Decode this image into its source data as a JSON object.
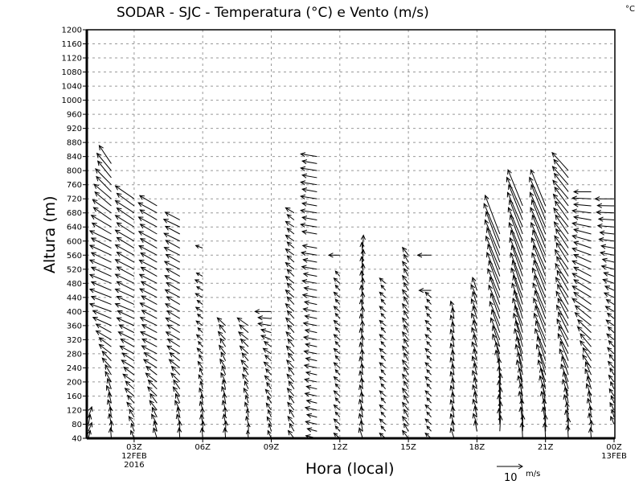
{
  "chart_data": {
    "type": "vector",
    "title": "SODAR - SJC - Temperatura (°C) e Vento (m/s)",
    "corner_unit": "°C",
    "xlabel": "Hora (local)",
    "ylabel": "Altura (m)",
    "ylim": [
      40,
      1200
    ],
    "ytick_step": 40,
    "xlim_hours": [
      0.7,
      24.05
    ],
    "xticks": [
      {
        "hour": 3,
        "label": "03Z",
        "sub": [
          "12FEB",
          "2016"
        ]
      },
      {
        "hour": 6,
        "label": "06Z",
        "sub": []
      },
      {
        "hour": 9,
        "label": "09Z",
        "sub": []
      },
      {
        "hour": 12,
        "label": "12Z",
        "sub": []
      },
      {
        "hour": 15,
        "label": "15Z",
        "sub": []
      },
      {
        "hour": 18,
        "label": "18Z",
        "sub": []
      },
      {
        "hour": 21,
        "label": "21Z",
        "sub": []
      },
      {
        "hour": 24,
        "label": "00Z",
        "sub": [
          "13FEB"
        ]
      }
    ],
    "grid": true,
    "reference_vector": {
      "value": 10,
      "label": "10",
      "unit": "m/s"
    },
    "level_step_m": 20,
    "profiles": [
      {
        "hour": 1,
        "range": [
          40,
          100
        ],
        "wind": [
          [
            40,
            1,
            3
          ],
          [
            100,
            1,
            4
          ]
        ],
        "skip": []
      },
      {
        "hour": 2,
        "range": [
          40,
          820
        ],
        "wind": [
          [
            40,
            0,
            4
          ],
          [
            200,
            -2,
            4
          ],
          [
            400,
            -8,
            3
          ],
          [
            600,
            -8,
            4
          ],
          [
            820,
            -5,
            7
          ]
        ],
        "skip": []
      },
      {
        "hour": 3,
        "range": [
          40,
          720
        ],
        "wind": [
          [
            40,
            -1,
            3
          ],
          [
            200,
            -4,
            3
          ],
          [
            400,
            -7,
            3
          ],
          [
            720,
            -7,
            5
          ]
        ],
        "skip": []
      },
      {
        "hour": 4,
        "range": [
          40,
          700
        ],
        "wind": [
          [
            40,
            -1,
            4
          ],
          [
            300,
            -6,
            3
          ],
          [
            700,
            -7,
            4
          ]
        ],
        "skip": []
      },
      {
        "hour": 5,
        "range": [
          40,
          660
        ],
        "wind": [
          [
            40,
            0,
            4
          ],
          [
            300,
            -5,
            3
          ],
          [
            660,
            -6,
            3
          ]
        ],
        "skip": []
      },
      {
        "hour": 6,
        "range": [
          40,
          580
        ],
        "wind": [
          [
            40,
            0,
            4
          ],
          [
            300,
            -2,
            2
          ],
          [
            580,
            -3,
            1
          ]
        ],
        "skip": [
          520,
          540,
          560
        ]
      },
      {
        "hour": 7,
        "range": [
          40,
          370
        ],
        "wind": [
          [
            40,
            0,
            4
          ],
          [
            370,
            -3,
            3
          ]
        ],
        "skip": []
      },
      {
        "hour": 8,
        "range": [
          40,
          360
        ],
        "wind": [
          [
            40,
            0,
            3
          ],
          [
            360,
            -4,
            3
          ]
        ],
        "skip": []
      },
      {
        "hour": 9,
        "range": [
          40,
          400
        ],
        "wind": [
          [
            40,
            -1,
            3
          ],
          [
            300,
            -3,
            2
          ],
          [
            400,
            -6,
            0
          ]
        ],
        "skip": []
      },
      {
        "hour": 10,
        "range": [
          40,
          680
        ],
        "wind": [
          [
            40,
            -2,
            3
          ],
          [
            400,
            -3,
            3
          ],
          [
            680,
            -3,
            2
          ]
        ],
        "skip": []
      },
      {
        "hour": 11,
        "range": [
          40,
          840
        ],
        "wind": [
          [
            40,
            -4,
            1
          ],
          [
            400,
            -5,
            1
          ],
          [
            620,
            -6,
            1
          ],
          [
            840,
            -6,
            1
          ]
        ],
        "skip": [
          600
        ]
      },
      {
        "hour": 12,
        "range": [
          40,
          560
        ],
        "wind": [
          [
            40,
            -2,
            2
          ],
          [
            500,
            -2,
            2
          ],
          [
            560,
            -4,
            0
          ]
        ],
        "skip": [
          520,
          540
        ]
      },
      {
        "hour": 13,
        "range": [
          40,
          580
        ],
        "wind": [
          [
            40,
            -1,
            4
          ],
          [
            580,
            0,
            5
          ]
        ],
        "skip": []
      },
      {
        "hour": 14,
        "range": [
          40,
          480
        ],
        "wind": [
          [
            40,
            -2,
            2
          ],
          [
            480,
            -2,
            2
          ]
        ],
        "skip": []
      },
      {
        "hour": 15,
        "range": [
          40,
          560
        ],
        "wind": [
          [
            40,
            -2,
            3
          ],
          [
            560,
            -2,
            3
          ]
        ],
        "skip": []
      },
      {
        "hour": 16,
        "range": [
          40,
          560
        ],
        "wind": [
          [
            40,
            -2,
            2
          ],
          [
            440,
            -2,
            2
          ],
          [
            460,
            -5,
            0
          ],
          [
            560,
            -5,
            0
          ]
        ],
        "skip": [
          480,
          500,
          520,
          540
        ]
      },
      {
        "hour": 17,
        "range": [
          40,
          400
        ],
        "wind": [
          [
            40,
            -1,
            4
          ],
          [
            400,
            -1,
            4
          ]
        ],
        "skip": []
      },
      {
        "hour": 18,
        "range": [
          60,
          460
        ],
        "wind": [
          [
            40,
            -1,
            4
          ],
          [
            460,
            -2,
            5
          ]
        ],
        "skip": []
      },
      {
        "hour": 19,
        "range": [
          60,
          620
        ],
        "wind": [
          [
            40,
            0,
            6
          ],
          [
            200,
            0,
            6
          ],
          [
            300,
            -3,
            8
          ],
          [
            620,
            -6,
            15
          ]
        ],
        "skip": []
      },
      {
        "hour": 20,
        "range": [
          40,
          700
        ],
        "wind": [
          [
            40,
            0,
            6
          ],
          [
            300,
            -3,
            10
          ],
          [
            700,
            -6,
            14
          ]
        ],
        "skip": []
      },
      {
        "hour": 21,
        "range": [
          40,
          700
        ],
        "wind": [
          [
            40,
            0,
            6
          ],
          [
            300,
            -4,
            10
          ],
          [
            700,
            -6,
            14
          ]
        ],
        "skip": []
      },
      {
        "hour": 22,
        "range": [
          40,
          800
        ],
        "wind": [
          [
            40,
            0,
            5
          ],
          [
            300,
            -4,
            8
          ],
          [
            800,
            -6,
            7
          ]
        ],
        "skip": []
      },
      {
        "hour": 23,
        "range": [
          40,
          740
        ],
        "wind": [
          [
            40,
            0,
            4
          ],
          [
            200,
            -2,
            5
          ],
          [
            400,
            -7,
            5
          ],
          [
            740,
            -7,
            0
          ]
        ],
        "skip": []
      },
      {
        "hour": 24,
        "range": [
          80,
          720
        ],
        "wind": [
          [
            80,
            -1,
            3
          ],
          [
            400,
            -3,
            2
          ],
          [
            720,
            -7,
            0
          ]
        ],
        "skip": []
      }
    ]
  }
}
